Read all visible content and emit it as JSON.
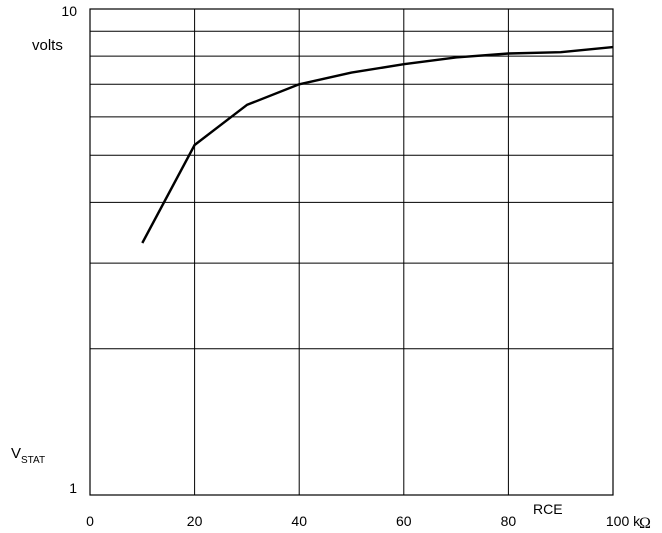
{
  "chart_data": {
    "type": "line",
    "scale_y": "log",
    "grid": true,
    "xlim": [
      0,
      100
    ],
    "ylim": [
      1,
      10
    ],
    "x_ticks": [
      "0",
      "20",
      "40",
      "60",
      "80",
      "100 k"
    ],
    "x_tick_values": [
      0,
      20,
      40,
      60,
      80,
      100
    ],
    "y_ticks": [
      "1",
      "10"
    ],
    "y_tick_values": [
      1,
      10
    ],
    "y_gridlines": [
      2,
      3,
      4,
      5,
      6,
      7,
      8,
      9
    ],
    "x_gridlines": [
      20,
      40,
      60,
      80
    ],
    "xlabel": "RCE",
    "xunit": "Ω",
    "ylabel": {
      "main": "V",
      "sub": "STAT"
    },
    "yunit": "volts",
    "series": [
      {
        "x": [
          10,
          20,
          30,
          40,
          50,
          60,
          70,
          80,
          90,
          100
        ],
        "values": [
          3.3,
          5.25,
          6.35,
          7.0,
          7.4,
          7.7,
          7.95,
          8.1,
          8.15,
          8.35
        ]
      }
    ]
  }
}
